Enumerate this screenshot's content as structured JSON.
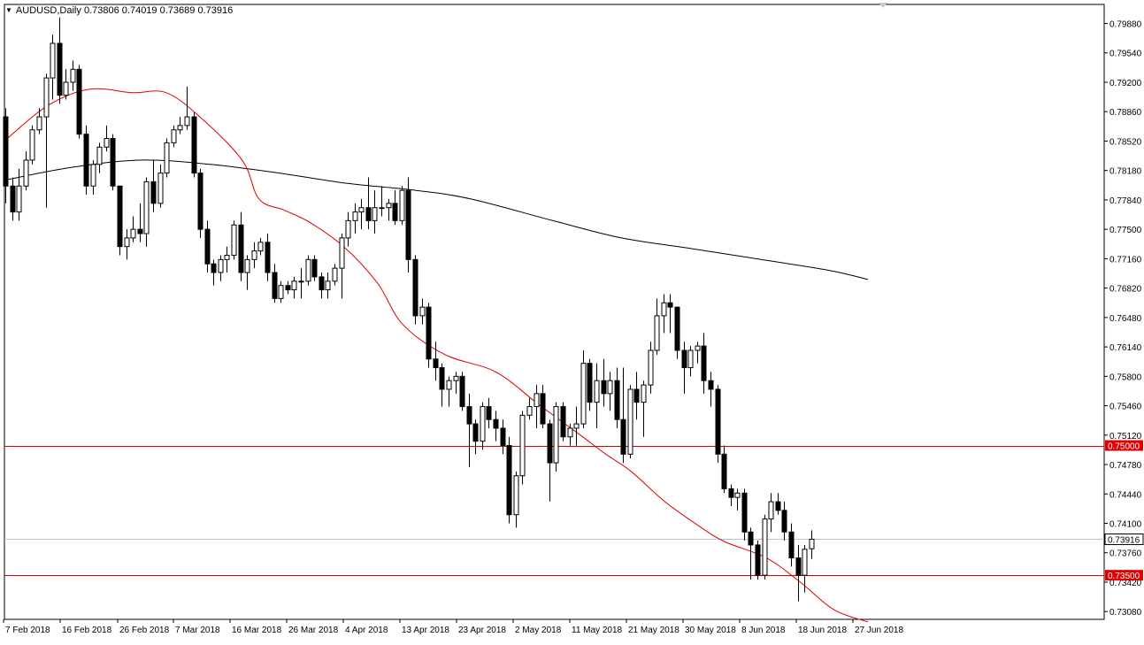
{
  "header": {
    "symbol": "AUDUSD,Daily",
    "open": "0.73806",
    "high": "0.74019",
    "low": "0.73689",
    "close": "0.73916"
  },
  "colors": {
    "bull_fill": "#ffffff",
    "bear_fill": "#000000",
    "wick": "#000000",
    "ma_fast": "#e00000",
    "ma_slow": "#000000",
    "hline": "#e00000",
    "bid_line": "#c0c0c0",
    "label_bg": "#e00000"
  },
  "chart_data": {
    "type": "candlestick",
    "yaxis_labels": [
      "0.79880",
      "0.79540",
      "0.79200",
      "0.78860",
      "0.78520",
      "0.78180",
      "0.77840",
      "0.77500",
      "0.77160",
      "0.76820",
      "0.76480",
      "0.76140",
      "0.75800",
      "0.75460",
      "0.75120",
      "0.74780",
      "0.74440",
      "0.74100",
      "0.73760",
      "0.73420",
      "0.73080"
    ],
    "ylim": [
      0.7299,
      0.801
    ],
    "xaxis_labels": [
      "7 Feb 2018",
      "16 Feb 2018",
      "26 Feb 2018",
      "7 Mar 2018",
      "16 Mar 2018",
      "26 Mar 2018",
      "4 Apr 2018",
      "13 Apr 2018",
      "23 Apr 2018",
      "2 May 2018",
      "11 May 2018",
      "21 May 2018",
      "30 May 2018",
      "8 Jun 2018",
      "18 Jun 2018",
      "27 Jun 2018"
    ],
    "horizontal_levels": [
      {
        "price": 0.75,
        "label": "0.75000"
      },
      {
        "price": 0.735,
        "label": "0.73500"
      }
    ],
    "current_price": {
      "price": 0.73916,
      "label": "0.73916"
    },
    "candles": [
      [
        0.788,
        0.789,
        0.778,
        0.78
      ],
      [
        0.78,
        0.781,
        0.776,
        0.777
      ],
      [
        0.777,
        0.782,
        0.776,
        0.78
      ],
      [
        0.78,
        0.784,
        0.7795,
        0.783
      ],
      [
        0.783,
        0.787,
        0.7825,
        0.7865
      ],
      [
        0.7865,
        0.789,
        0.786,
        0.788
      ],
      [
        0.788,
        0.793,
        0.7775,
        0.7925
      ],
      [
        0.7925,
        0.7975,
        0.79,
        0.7965
      ],
      [
        0.7965,
        0.7995,
        0.7895,
        0.7905
      ],
      [
        0.7905,
        0.7935,
        0.79,
        0.792
      ],
      [
        0.792,
        0.7945,
        0.791,
        0.7935
      ],
      [
        0.7935,
        0.794,
        0.7855,
        0.786
      ],
      [
        0.786,
        0.787,
        0.779,
        0.78
      ],
      [
        0.78,
        0.783,
        0.779,
        0.7825
      ],
      [
        0.7825,
        0.785,
        0.7815,
        0.7845
      ],
      [
        0.7845,
        0.787,
        0.784,
        0.7855
      ],
      [
        0.7855,
        0.786,
        0.7795,
        0.78
      ],
      [
        0.78,
        0.78,
        0.772,
        0.773
      ],
      [
        0.773,
        0.775,
        0.7715,
        0.774
      ],
      [
        0.774,
        0.7765,
        0.7735,
        0.775
      ],
      [
        0.775,
        0.778,
        0.7735,
        0.7745
      ],
      [
        0.7745,
        0.781,
        0.773,
        0.7805
      ],
      [
        0.7805,
        0.783,
        0.777,
        0.778
      ],
      [
        0.778,
        0.7825,
        0.7775,
        0.7815
      ],
      [
        0.7815,
        0.7855,
        0.781,
        0.785
      ],
      [
        0.785,
        0.787,
        0.7845,
        0.7865
      ],
      [
        0.7865,
        0.788,
        0.786,
        0.787
      ],
      [
        0.787,
        0.7915,
        0.7865,
        0.788
      ],
      [
        0.788,
        0.7885,
        0.781,
        0.7815
      ],
      [
        0.7815,
        0.782,
        0.774,
        0.775
      ],
      [
        0.775,
        0.776,
        0.77,
        0.771
      ],
      [
        0.771,
        0.7715,
        0.7685,
        0.77
      ],
      [
        0.77,
        0.772,
        0.769,
        0.7715
      ],
      [
        0.7715,
        0.773,
        0.77,
        0.772
      ],
      [
        0.772,
        0.776,
        0.7715,
        0.7755
      ],
      [
        0.7755,
        0.777,
        0.769,
        0.77
      ],
      [
        0.77,
        0.772,
        0.768,
        0.7715
      ],
      [
        0.7715,
        0.7735,
        0.7705,
        0.7725
      ],
      [
        0.7725,
        0.774,
        0.772,
        0.7735
      ],
      [
        0.7735,
        0.7745,
        0.769,
        0.77
      ],
      [
        0.77,
        0.771,
        0.7665,
        0.767
      ],
      [
        0.767,
        0.769,
        0.7665,
        0.7685
      ],
      [
        0.7685,
        0.769,
        0.7675,
        0.768
      ],
      [
        0.768,
        0.7695,
        0.767,
        0.769
      ],
      [
        0.769,
        0.7705,
        0.767,
        0.769
      ],
      [
        0.769,
        0.772,
        0.7685,
        0.7715
      ],
      [
        0.7715,
        0.772,
        0.769,
        0.7695
      ],
      [
        0.7695,
        0.77,
        0.767,
        0.768
      ],
      [
        0.768,
        0.77,
        0.767,
        0.769
      ],
      [
        0.769,
        0.771,
        0.7685,
        0.7705
      ],
      [
        0.7705,
        0.7745,
        0.767,
        0.774
      ],
      [
        0.774,
        0.777,
        0.773,
        0.776
      ],
      [
        0.776,
        0.778,
        0.7745,
        0.777
      ],
      [
        0.777,
        0.7785,
        0.775,
        0.7775
      ],
      [
        0.7775,
        0.781,
        0.775,
        0.776
      ],
      [
        0.776,
        0.7795,
        0.7745,
        0.7775
      ],
      [
        0.7775,
        0.78,
        0.7765,
        0.7775
      ],
      [
        0.7775,
        0.7785,
        0.776,
        0.778
      ],
      [
        0.778,
        0.7795,
        0.7755,
        0.776
      ],
      [
        0.776,
        0.78,
        0.7755,
        0.7795
      ],
      [
        0.7795,
        0.781,
        0.77,
        0.7715
      ],
      [
        0.7715,
        0.772,
        0.764,
        0.765
      ],
      [
        0.765,
        0.767,
        0.764,
        0.766
      ],
      [
        0.766,
        0.7665,
        0.759,
        0.76
      ],
      [
        0.76,
        0.762,
        0.7575,
        0.759
      ],
      [
        0.759,
        0.7595,
        0.7545,
        0.7565
      ],
      [
        0.7565,
        0.758,
        0.7545,
        0.7575
      ],
      [
        0.7575,
        0.7585,
        0.756,
        0.758
      ],
      [
        0.758,
        0.7585,
        0.754,
        0.7545
      ],
      [
        0.7545,
        0.756,
        0.7475,
        0.7525
      ],
      [
        0.7525,
        0.753,
        0.749,
        0.7505
      ],
      [
        0.7505,
        0.755,
        0.7495,
        0.7545
      ],
      [
        0.7545,
        0.7555,
        0.752,
        0.753
      ],
      [
        0.753,
        0.754,
        0.7505,
        0.752
      ],
      [
        0.752,
        0.753,
        0.749,
        0.75
      ],
      [
        0.75,
        0.751,
        0.741,
        0.742
      ],
      [
        0.742,
        0.747,
        0.7405,
        0.7465
      ],
      [
        0.7465,
        0.754,
        0.7455,
        0.7535
      ],
      [
        0.7535,
        0.7555,
        0.753,
        0.7545
      ],
      [
        0.7545,
        0.757,
        0.752,
        0.756
      ],
      [
        0.756,
        0.757,
        0.752,
        0.7525
      ],
      [
        0.7525,
        0.753,
        0.7435,
        0.748
      ],
      [
        0.748,
        0.755,
        0.747,
        0.7545
      ],
      [
        0.7545,
        0.755,
        0.7505,
        0.751
      ],
      [
        0.751,
        0.7525,
        0.75,
        0.752
      ],
      [
        0.752,
        0.7545,
        0.75,
        0.7525
      ],
      [
        0.7525,
        0.761,
        0.752,
        0.7595
      ],
      [
        0.7595,
        0.76,
        0.754,
        0.755
      ],
      [
        0.755,
        0.7595,
        0.752,
        0.7575
      ],
      [
        0.7575,
        0.76,
        0.7545,
        0.756
      ],
      [
        0.756,
        0.7585,
        0.754,
        0.7575
      ],
      [
        0.7575,
        0.759,
        0.752,
        0.753
      ],
      [
        0.753,
        0.759,
        0.748,
        0.749
      ],
      [
        0.749,
        0.757,
        0.7485,
        0.7565
      ],
      [
        0.7565,
        0.7585,
        0.753,
        0.755
      ],
      [
        0.755,
        0.7575,
        0.751,
        0.757
      ],
      [
        0.757,
        0.762,
        0.756,
        0.761
      ],
      [
        0.761,
        0.767,
        0.7605,
        0.765
      ],
      [
        0.765,
        0.7675,
        0.763,
        0.7665
      ],
      [
        0.7665,
        0.7675,
        0.763,
        0.766
      ],
      [
        0.766,
        0.766,
        0.76,
        0.761
      ],
      [
        0.761,
        0.762,
        0.756,
        0.759
      ],
      [
        0.759,
        0.7615,
        0.758,
        0.761
      ],
      [
        0.761,
        0.762,
        0.7595,
        0.7615
      ],
      [
        0.7615,
        0.763,
        0.756,
        0.7575
      ],
      [
        0.7575,
        0.7585,
        0.7545,
        0.7565
      ],
      [
        0.7565,
        0.757,
        0.748,
        0.749
      ],
      [
        0.749,
        0.75,
        0.7445,
        0.745
      ],
      [
        0.745,
        0.7455,
        0.743,
        0.744
      ],
      [
        0.744,
        0.745,
        0.7425,
        0.7445
      ],
      [
        0.7445,
        0.745,
        0.739,
        0.74
      ],
      [
        0.74,
        0.7405,
        0.7345,
        0.7385
      ],
      [
        0.7385,
        0.739,
        0.7345,
        0.735
      ],
      [
        0.735,
        0.742,
        0.7345,
        0.7415
      ],
      [
        0.7415,
        0.7445,
        0.74,
        0.7435
      ],
      [
        0.7435,
        0.7445,
        0.742,
        0.7425
      ],
      [
        0.7425,
        0.7435,
        0.739,
        0.74
      ],
      [
        0.74,
        0.741,
        0.736,
        0.737
      ],
      [
        0.737,
        0.7385,
        0.732,
        0.735
      ],
      [
        0.735,
        0.7385,
        0.733,
        0.738
      ],
      [
        0.73806,
        0.74019,
        0.73689,
        0.73916
      ]
    ],
    "ma_fast": [
      [
        0,
        0.7853
      ],
      [
        10,
        0.7893
      ],
      [
        20,
        0.7912
      ],
      [
        30,
        0.7908
      ],
      [
        38,
        0.7908
      ],
      [
        46,
        0.788
      ],
      [
        56,
        0.783
      ],
      [
        60,
        0.7785
      ],
      [
        66,
        0.7772
      ],
      [
        72,
        0.7758
      ],
      [
        80,
        0.773
      ],
      [
        88,
        0.7688
      ],
      [
        94,
        0.764
      ],
      [
        104,
        0.7605
      ],
      [
        116,
        0.7585
      ],
      [
        126,
        0.7548
      ],
      [
        136,
        0.7512
      ],
      [
        142,
        0.749
      ],
      [
        148,
        0.747
      ],
      [
        156,
        0.7435
      ],
      [
        164,
        0.7407
      ],
      [
        170,
        0.7389
      ],
      [
        180,
        0.737
      ],
      [
        188,
        0.7342
      ],
      [
        196,
        0.731
      ],
      [
        204,
        0.7296
      ]
    ],
    "ma_slow": [
      [
        0,
        0.7807
      ],
      [
        20,
        0.7822
      ],
      [
        40,
        0.783
      ],
      [
        60,
        0.7825
      ],
      [
        80,
        0.7815
      ],
      [
        100,
        0.7803
      ],
      [
        120,
        0.7795
      ],
      [
        136,
        0.7785
      ],
      [
        160,
        0.776
      ],
      [
        180,
        0.774
      ],
      [
        200,
        0.7728
      ],
      [
        216,
        0.7718
      ],
      [
        240,
        0.7703
      ],
      [
        252,
        0.7692
      ]
    ]
  }
}
